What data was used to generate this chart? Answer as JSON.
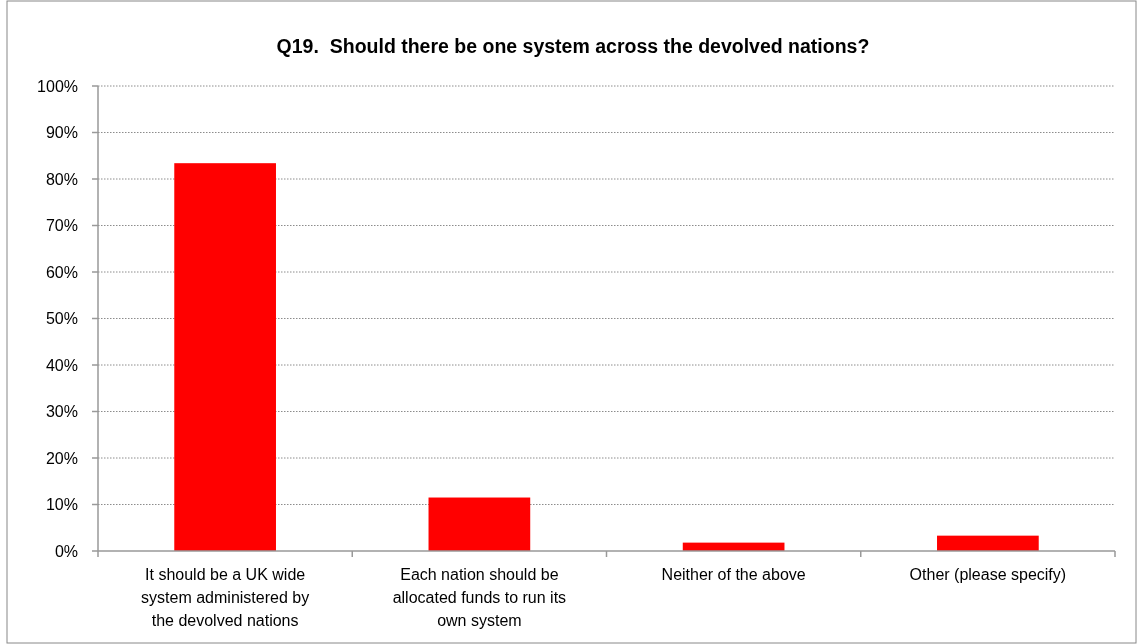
{
  "chart_data": {
    "type": "bar",
    "title": "Q19.  Should there be one system across the devolved nations?",
    "categories": [
      "It should be a UK wide system administered by the devolved nations",
      "Each nation should be allocated funds to run its own system",
      "Neither of the above",
      "Other (please specify)"
    ],
    "values": [
      83.4,
      11.5,
      1.8,
      3.3
    ],
    "color": "#ff0000",
    "ylim": [
      0,
      100
    ],
    "yticks": [
      {
        "value": 0,
        "label": "0%"
      },
      {
        "value": 10,
        "label": "10%"
      },
      {
        "value": 20,
        "label": "20%"
      },
      {
        "value": 30,
        "label": "30%"
      },
      {
        "value": 40,
        "label": "40%"
      },
      {
        "value": 50,
        "label": "50%"
      },
      {
        "value": 60,
        "label": "60%"
      },
      {
        "value": 70,
        "label": "70%"
      },
      {
        "value": 80,
        "label": "80%"
      },
      {
        "value": 90,
        "label": "90%"
      },
      {
        "value": 100,
        "label": "100%"
      }
    ],
    "grid": "y"
  }
}
